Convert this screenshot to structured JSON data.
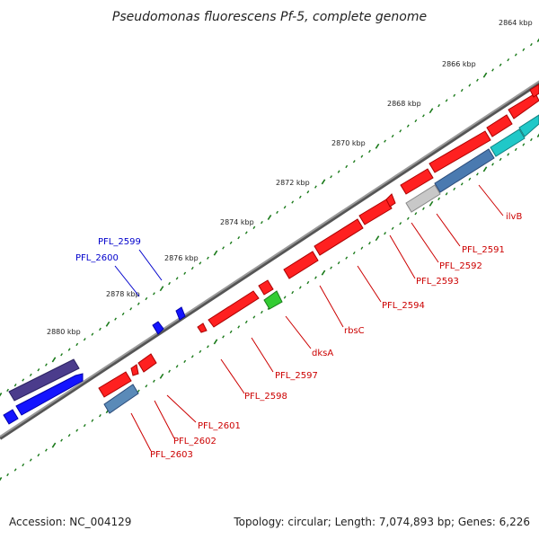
{
  "title": "Pseudomonas fluorescens Pf-5, complete genome",
  "accession_text": "Accession: NC_004129",
  "summary_text": "Topology: circular; Length: 7,074,893 bp; Genes: 6,226",
  "tick_labels": [
    "2864 kbp",
    "2866 kbp",
    "2868 kbp",
    "2870 kbp",
    "2872 kbp",
    "2874 kbp",
    "2876 kbp",
    "2878 kbp",
    "2880 kbp"
  ],
  "colors": {
    "backbone": "#808080",
    "tick": "#1a7a1a",
    "forward_label": "#0000cc",
    "reverse_label": "#cc0000"
  },
  "genes": [
    {
      "name": "PFL_2591",
      "label_color": "#cc0000",
      "gene_color": "#ff0000"
    },
    {
      "name": "PFL_2592",
      "label_color": "#cc0000",
      "gene_color": "#c0c0c0"
    },
    {
      "name": "PFL_2593",
      "label_color": "#cc0000",
      "gene_color": "#ff0000"
    },
    {
      "name": "PFL_2594",
      "label_color": "#cc0000",
      "gene_color": "#ff0000"
    },
    {
      "name": "rbsC",
      "label_color": "#cc0000",
      "gene_color": "#ff0000"
    },
    {
      "name": "dksA",
      "label_color": "#cc0000",
      "gene_color": "#33cc33"
    },
    {
      "name": "PFL_2597",
      "label_color": "#cc0000",
      "gene_color": "#ff0000"
    },
    {
      "name": "PFL_2598",
      "label_color": "#cc0000",
      "gene_color": "#ff0000"
    },
    {
      "name": "PFL_2599",
      "label_color": "#0000cc",
      "gene_color": "#0000ff"
    },
    {
      "name": "PFL_2600",
      "label_color": "#0000cc",
      "gene_color": "#0000ff"
    },
    {
      "name": "PFL_2601",
      "label_color": "#cc0000",
      "gene_color": "#ff0000"
    },
    {
      "name": "PFL_2602",
      "label_color": "#cc0000",
      "gene_color": "#ff0000"
    },
    {
      "name": "PFL_2603",
      "label_color": "#cc0000",
      "gene_color": "#4682b4"
    },
    {
      "name": "ilvB",
      "label_color": "#cc0000",
      "gene_color": "#4682b4"
    }
  ]
}
